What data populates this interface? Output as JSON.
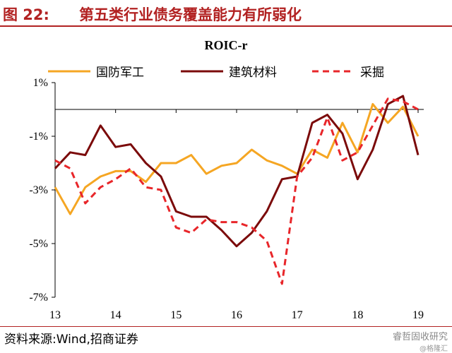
{
  "header": {
    "figure_label": "图 22:",
    "title": "第五类行业债务覆盖能力有所弱化"
  },
  "footer": {
    "source": "资料来源:Wind,招商证券",
    "watermark": "睿哲固收研究",
    "watermark_sub": "@格隆汇"
  },
  "chart_data": {
    "type": "line",
    "title": "ROIC-r",
    "xlabel": "",
    "ylabel": "",
    "x_ticks": [
      "13",
      "14",
      "15",
      "16",
      "17",
      "18",
      "19"
    ],
    "y_ticks": [
      "1%",
      "-1%",
      "-3%",
      "-5%",
      "-7%"
    ],
    "ylim": [
      -7,
      1
    ],
    "xlim": [
      2013.0,
      2019.0
    ],
    "grid": false,
    "legend_position": "top",
    "series": [
      {
        "name": "国防军工",
        "color": "#f5a623",
        "style": "solid",
        "x": [
          2013.0,
          2013.25,
          2013.5,
          2013.75,
          2014.0,
          2014.25,
          2014.5,
          2014.75,
          2015.0,
          2015.25,
          2015.5,
          2015.75,
          2016.0,
          2016.25,
          2016.5,
          2016.75,
          2017.0,
          2017.25,
          2017.5,
          2017.75,
          2018.0,
          2018.25,
          2018.5,
          2018.75,
          2019.0
        ],
        "values": [
          -2.9,
          -3.9,
          -2.9,
          -2.5,
          -2.3,
          -2.3,
          -2.7,
          -2.0,
          -2.0,
          -1.7,
          -2.4,
          -2.1,
          -2.0,
          -1.5,
          -1.9,
          -2.1,
          -2.4,
          -1.5,
          -1.8,
          -0.5,
          -1.6,
          0.2,
          -0.5,
          0.1,
          -1.0
        ]
      },
      {
        "name": "建筑材料",
        "color": "#7b0a0a",
        "style": "solid",
        "x": [
          2013.0,
          2013.25,
          2013.5,
          2013.75,
          2014.0,
          2014.25,
          2014.5,
          2014.75,
          2015.0,
          2015.25,
          2015.5,
          2015.75,
          2016.0,
          2016.25,
          2016.5,
          2016.75,
          2017.0,
          2017.25,
          2017.5,
          2017.75,
          2018.0,
          2018.25,
          2018.5,
          2018.75,
          2019.0
        ],
        "values": [
          -2.2,
          -1.6,
          -1.7,
          -0.6,
          -1.4,
          -1.3,
          -2.0,
          -2.5,
          -3.8,
          -4.0,
          -4.0,
          -4.5,
          -5.1,
          -4.6,
          -3.8,
          -2.6,
          -2.5,
          -0.5,
          -0.2,
          -0.9,
          -2.6,
          -1.5,
          0.2,
          0.5,
          -1.7
        ]
      },
      {
        "name": "采掘",
        "color": "#e8262a",
        "style": "dashed",
        "x": [
          2013.0,
          2013.25,
          2013.5,
          2013.75,
          2014.0,
          2014.25,
          2014.5,
          2014.75,
          2015.0,
          2015.25,
          2015.5,
          2015.75,
          2016.0,
          2016.25,
          2016.5,
          2016.75,
          2017.0,
          2017.25,
          2017.5,
          2017.75,
          2018.0,
          2018.25,
          2018.5,
          2018.75,
          2019.0
        ],
        "values": [
          -1.9,
          -2.2,
          -3.5,
          -2.9,
          -2.6,
          -2.2,
          -2.9,
          -3.0,
          -4.4,
          -4.6,
          -4.1,
          -4.2,
          -4.2,
          -4.4,
          -4.9,
          -6.5,
          -2.5,
          -1.8,
          -0.3,
          -1.9,
          -1.6,
          -0.6,
          0.4,
          0.3,
          0.0
        ]
      }
    ]
  }
}
